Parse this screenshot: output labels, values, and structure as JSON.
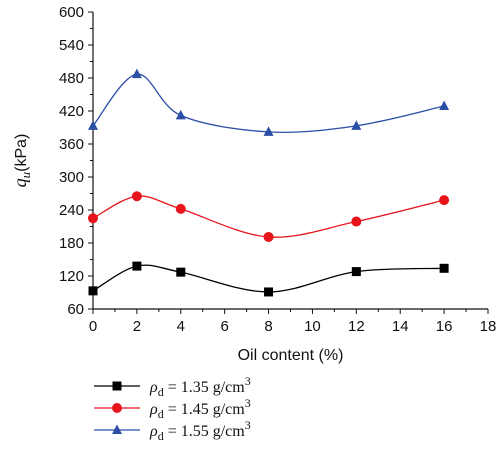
{
  "chart_data": {
    "type": "line",
    "xlabel": "Oil content (%)",
    "ylabel": "q",
    "ylabel_sub": "u",
    "ylabel_unit": "(kPa)",
    "xlim": [
      0,
      18
    ],
    "ylim": [
      60,
      600
    ],
    "xticks": [
      "0",
      "2",
      "4",
      "6",
      "8",
      "10",
      "12",
      "14",
      "16",
      "18"
    ],
    "yticks": [
      "60",
      "120",
      "180",
      "240",
      "300",
      "360",
      "420",
      "480",
      "540",
      "600"
    ],
    "grid": false,
    "legend_position": "bottom-left",
    "series": [
      {
        "name": "ρd = 1.35 g/cm3",
        "legend": {
          "rho": "ρ",
          "sub": "d",
          "text": " = 1.35 g/cm",
          "sup": "3"
        },
        "marker": "square",
        "color": "#000000",
        "x": [
          0,
          2,
          4,
          8,
          12,
          16
        ],
        "y": [
          93,
          138,
          127,
          91,
          128,
          134
        ]
      },
      {
        "name": "ρd = 1.45 g/cm3",
        "legend": {
          "rho": "ρ",
          "sub": "d",
          "text": " = 1.45 g/cm",
          "sup": "3"
        },
        "marker": "circle",
        "color": "#e8141b",
        "x": [
          0,
          2,
          4,
          8,
          12,
          16
        ],
        "y": [
          225,
          265,
          242,
          191,
          219,
          258
        ]
      },
      {
        "name": "ρd = 1.55 g/cm3",
        "legend": {
          "rho": "ρ",
          "sub": "d",
          "text": " = 1.55 g/cm",
          "sup": "3"
        },
        "marker": "triangle",
        "color": "#2b4ea6",
        "x": [
          0,
          2,
          4,
          8,
          12,
          16
        ],
        "y": [
          393,
          487,
          412,
          382,
          393,
          429
        ]
      }
    ]
  }
}
